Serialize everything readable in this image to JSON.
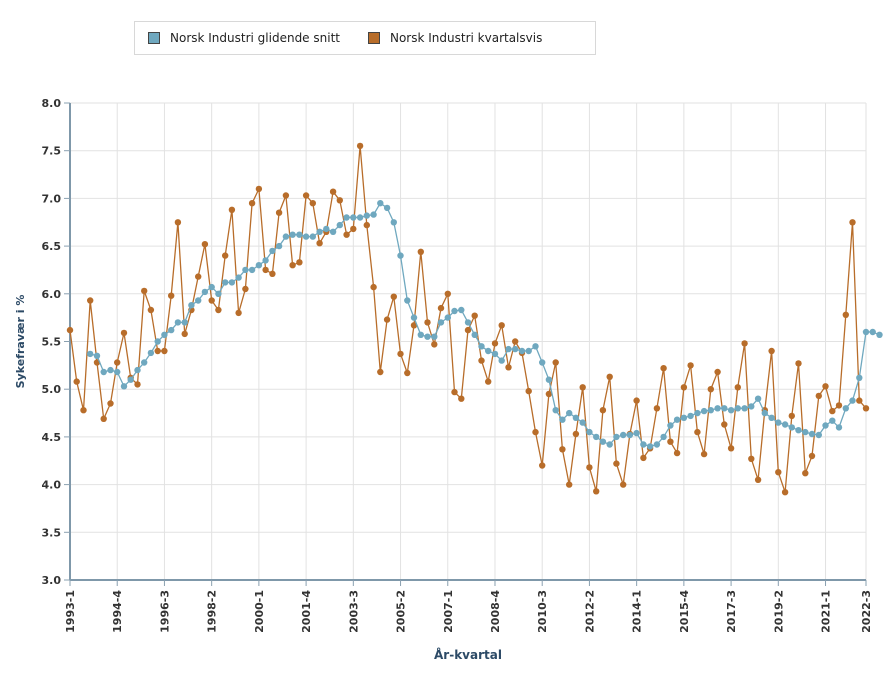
{
  "chart_data": {
    "type": "line",
    "title": "",
    "xlabel": "År-kvartal",
    "ylabel": "Sykefravær i %",
    "ylim": [
      3.0,
      8.0
    ],
    "yticks": [
      "3.0",
      "3.5",
      "4.0",
      "4.5",
      "5.0",
      "5.5",
      "6.0",
      "6.5",
      "7.0",
      "7.5",
      "8.0"
    ],
    "xticks": [
      "1993-1",
      "1994-4",
      "1996-3",
      "1998-2",
      "2000-1",
      "2001-4",
      "2003-3",
      "2005-2",
      "2007-1",
      "2008-4",
      "2010-3",
      "2012-2",
      "2014-1",
      "2015-4",
      "2017-3",
      "2019-2",
      "2021-1",
      "2022-3"
    ],
    "grid": true,
    "legend_position": "top",
    "x_start": "1993-1",
    "series": [
      {
        "name": "Norsk Industri glidende snitt",
        "color": "#6fa8bf",
        "start_index": 3,
        "values": [
          5.37,
          5.35,
          5.18,
          5.2,
          5.18,
          5.03,
          5.1,
          5.2,
          5.28,
          5.38,
          5.5,
          5.57,
          5.62,
          5.7,
          5.7,
          5.88,
          5.93,
          6.02,
          6.07,
          6.0,
          6.12,
          6.12,
          6.17,
          6.25,
          6.25,
          6.3,
          6.35,
          6.45,
          6.5,
          6.6,
          6.62,
          6.62,
          6.6,
          6.6,
          6.65,
          6.68,
          6.65,
          6.72,
          6.8,
          6.8,
          6.8,
          6.82,
          6.83,
          6.95,
          6.9,
          6.75,
          6.4,
          5.93,
          5.75,
          5.57,
          5.55,
          5.55,
          5.7,
          5.75,
          5.82,
          5.83,
          5.7,
          5.57,
          5.45,
          5.4,
          5.37,
          5.3,
          5.42,
          5.42,
          5.4,
          5.4,
          5.45,
          5.28,
          5.1,
          4.78,
          4.68,
          4.75,
          4.7,
          4.65,
          4.55,
          4.5,
          4.45,
          4.42,
          4.5,
          4.52,
          4.52,
          4.54,
          4.42,
          4.4,
          4.42,
          4.5,
          4.62,
          4.68,
          4.7,
          4.72,
          4.75,
          4.77,
          4.78,
          4.8,
          4.8,
          4.78,
          4.8,
          4.8,
          4.82,
          4.9,
          4.75,
          4.7,
          4.65,
          4.63,
          4.6,
          4.57,
          4.55,
          4.53,
          4.52,
          4.62,
          4.67,
          4.6,
          4.8,
          4.88,
          5.12,
          5.6,
          5.6,
          5.57
        ]
      },
      {
        "name": "Norsk Industri kvartalsvis",
        "color": "#b86d2a",
        "start_index": 0,
        "values": [
          5.62,
          5.08,
          4.78,
          5.93,
          5.28,
          4.69,
          4.85,
          5.28,
          5.59,
          5.12,
          5.05,
          6.03,
          5.83,
          5.4,
          5.4,
          5.98,
          6.75,
          5.58,
          5.83,
          6.18,
          6.52,
          5.93,
          5.83,
          6.4,
          6.88,
          5.8,
          6.05,
          6.95,
          7.1,
          6.25,
          6.21,
          6.85,
          7.03,
          6.3,
          6.33,
          7.03,
          6.95,
          6.53,
          6.65,
          7.07,
          6.98,
          6.62,
          6.68,
          7.55,
          6.72,
          6.07,
          5.18,
          5.73,
          5.97,
          5.37,
          5.17,
          5.67,
          6.44,
          5.7,
          5.47,
          5.85,
          6.0,
          4.97,
          4.9,
          5.62,
          5.77,
          5.3,
          5.08,
          5.48,
          5.67,
          5.23,
          5.5,
          5.38,
          4.98,
          4.55,
          4.2,
          4.95,
          5.28,
          4.37,
          4.0,
          4.53,
          5.02,
          4.18,
          3.93,
          4.78,
          5.13,
          4.22,
          4.0,
          4.53,
          4.88,
          4.28,
          4.38,
          4.8,
          5.22,
          4.45,
          4.33,
          5.02,
          5.25,
          4.55,
          4.32,
          5.0,
          5.18,
          4.63,
          4.38,
          5.02,
          5.48,
          4.27,
          4.05,
          4.78,
          5.4,
          4.13,
          3.92,
          4.72,
          5.27,
          4.12,
          4.3,
          4.93,
          5.03,
          4.77,
          4.83,
          5.78,
          6.75,
          4.88,
          4.8
        ]
      }
    ]
  }
}
